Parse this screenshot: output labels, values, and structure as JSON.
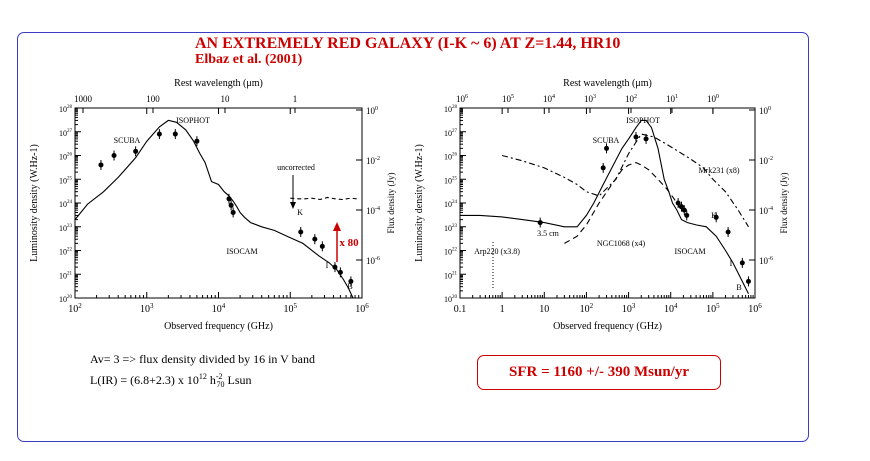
{
  "title": "AN EXTREMELY RED GALAXY (I-K ~ 6) AT Z=1.44, HR10",
  "subtitle": "Elbaz et al. (2001)",
  "colors": {
    "frame": "#3b3bc4",
    "title": "#cc0000",
    "sfr": "#cc0000",
    "arrow": "#cc0000"
  },
  "notes": {
    "line1": "Av= 3 => flux density divided by 16 in V band",
    "line2": "L(IR) = (6.8+2.3) x 10",
    "line2_exp": "12",
    "line2_h": "h",
    "line2_hexp": "-2",
    "line2_hsub": "70",
    "line2_unit": "Lsun"
  },
  "sfr": {
    "label": "SFR = 1160 +/- 390  Msun/yr"
  },
  "chart_data": [
    {
      "type": "scatter",
      "title": "",
      "top_axis_label": "Rest wavelength (μm)",
      "top_ticks": [
        "1000",
        "100",
        "10",
        "1"
      ],
      "xlabel": "Observed frequency (GHz)",
      "ylabel": "Luminosity density (W.Hz-1)",
      "y2label": "Flux density (Jy)",
      "x_log": true,
      "xlim": [
        100,
        1000000
      ],
      "ylim": [
        1e+20,
        1e+28
      ],
      "x_ticks": [
        "10^2",
        "10^3",
        "10^4",
        "10^5",
        "10^6"
      ],
      "y_ticks": [
        "10^20",
        "10^21",
        "10^22",
        "10^23",
        "10^24",
        "10^25",
        "10^26",
        "10^27",
        "10^28"
      ],
      "y2_ticks": [
        "10^0",
        "10^-2",
        "10^-4",
        "10^-6"
      ],
      "labels": [
        "SCUBA",
        "ISOPHOT",
        "ISOCAM",
        "uncorrected",
        "K",
        "I",
        "B",
        "x 80"
      ],
      "series": [
        {
          "name": "",
          "x": [
            100,
            150,
            250,
            400,
            700,
            1000,
            1500,
            2000,
            2600,
            3500,
            4500,
            5500,
            6500,
            8000,
            10000,
            12000,
            14000,
            16000,
            18000,
            20000,
            23000,
            28000,
            40000,
            60000,
            90000,
            150000,
            250000,
            350000,
            450000,
            550000,
            650000,
            750000,
            850000
          ],
          "y": [
            2e+23,
            9e+23,
            3e+24,
            1.2e+25,
            8e+25,
            4e+26,
            1.6e+27,
            3e+27,
            2.5e+27,
            1.2e+27,
            4e+26,
            1.2e+26,
            5e+25,
            8e+24,
            6e+24,
            3e+24,
            2e+24,
            1.2e+24,
            7e+23,
            4e+23,
            2.5e+23,
            1.5e+23,
            1e+23,
            7e+22,
            4e+22,
            2e+22,
            6e+21,
            3e+21,
            1.5e+21,
            6e+20,
            2.5e+20,
            1e+20,
            6e+19
          ]
        },
        {
          "name": "",
          "x": [
            100000,
            130000,
            160000,
            200000,
            260000,
            330000,
            420000,
            530000,
            700000,
            850000
          ],
          "y": [
            1.6e+24,
            1.5e+24,
            1.5e+24,
            1.6e+24,
            1.4e+24,
            1.7e+24,
            1.5e+24,
            1.4e+24,
            1.6e+24,
            1.5e+24
          ]
        }
      ],
      "points": {
        "x": [
          230,
          350,
          700,
          1500,
          2500,
          5000,
          14000,
          15000,
          16000,
          140000,
          220000,
          280000,
          420000,
          500000,
          700000
        ],
        "y": [
          4e+25,
          1e+26,
          1.5e+26,
          8e+26,
          8e+26,
          4e+26,
          1.5e+24,
          8e+23,
          4e+23,
          6e+22,
          3e+22,
          1.5e+22,
          2e+21,
          1.2e+21,
          5e+20
        ]
      }
    },
    {
      "type": "scatter",
      "title": "",
      "top_axis_label": "Rest wavelength (μm)",
      "top_ticks": [
        "10^6",
        "10^5",
        "10^4",
        "10^3",
        "10^2",
        "10^1",
        "10^0"
      ],
      "xlabel": "Observed frequency (GHz)",
      "ylabel": "Luminosity density (W.Hz-1)",
      "y2label": "Flux density (Jy)",
      "x_log": true,
      "xlim": [
        0.1,
        1000000
      ],
      "ylim": [
        1e+20,
        1e+28
      ],
      "x_ticks": [
        "0.1",
        "1",
        "10",
        "10^2",
        "10^3",
        "10^4",
        "10^5",
        "10^6"
      ],
      "y_ticks": [
        "10^20",
        "10^21",
        "10^22",
        "10^23",
        "10^24",
        "10^25",
        "10^26",
        "10^27",
        "10^28"
      ],
      "y2_ticks": [
        "10^0",
        "10^-2",
        "10^-4",
        "10^-6"
      ],
      "labels": [
        "SCUBA",
        "ISOPHOT",
        "ISOCAM",
        "3.5 cm",
        "Arp220 (x3.8)",
        "NGC1068 (x4)",
        "Mrk231 (x8)",
        "K",
        "I",
        "B"
      ],
      "series": [
        {
          "name": "Arp220 (x3.8)",
          "x": [
            0.1,
            0.3,
            1,
            3,
            10,
            30,
            60,
            100,
            150,
            250,
            400,
            700,
            1000,
            1500,
            2000,
            2600,
            3500,
            5000,
            7000,
            9000,
            11000,
            14000,
            18000,
            25000,
            40000,
            70000,
            120000,
            200000,
            300000,
            500000,
            700000
          ],
          "y": [
            3e+23,
            3e+23,
            2.6e+23,
            2e+23,
            1.5e+23,
            1e+23,
            1e+23,
            3e+23,
            1e+24,
            6e+24,
            3e+25,
            2e+26,
            5e+26,
            1.5e+27,
            3e+27,
            3e+27,
            1.5e+27,
            2e+26,
            1e+25,
            3e+24,
            1e+24,
            5e+23,
            2e+23,
            1.5e+23,
            1.2e+23,
            1e+23,
            4e+22,
            1e+22,
            3e+21,
            5e+20,
            1.5e+20
          ]
        },
        {
          "name": "NGC1068 (x4)",
          "x": [
            30,
            60,
            100,
            200,
            400,
            700,
            1000,
            1500,
            2000,
            3000,
            5000,
            8000,
            12000,
            18000
          ],
          "y": [
            2e+22,
            4e+22,
            1.2e+23,
            1e+24,
            6e+24,
            2.5e+25,
            4e+25,
            5e+25,
            4e+25,
            2.5e+25,
            1e+25,
            4e+24,
            1.5e+24,
            5e+23
          ]
        },
        {
          "name": "Mrk231 (x8)",
          "x": [
            1,
            3,
            10,
            30,
            60,
            100,
            200,
            500,
            1000,
            2000,
            4000,
            8000,
            15000,
            30000,
            60000,
            100000,
            200000,
            400000,
            700000
          ],
          "y": [
            1e+26,
            6e+25,
            3e+25,
            1.2e+25,
            6e+24,
            3e+24,
            2e+24,
            1e+25,
            1.2e+26,
            8e+26,
            6e+26,
            3e+26,
            1.5e+26,
            7e+25,
            3e+25,
            1e+25,
            3e+24,
            5e+23,
            1e+23
          ]
        }
      ],
      "points": {
        "x": [
          8,
          250,
          300,
          1500,
          2600,
          15000,
          18000,
          21000,
          24000,
          120000,
          230000,
          500000,
          700000
        ],
        "y": [
          1.5e+23,
          3e+25,
          2e+26,
          6e+26,
          5e+26,
          1e+24,
          7e+23,
          5e+23,
          3e+23,
          2.5e+23,
          6e+22,
          3e+21,
          5e+20
        ]
      }
    }
  ]
}
